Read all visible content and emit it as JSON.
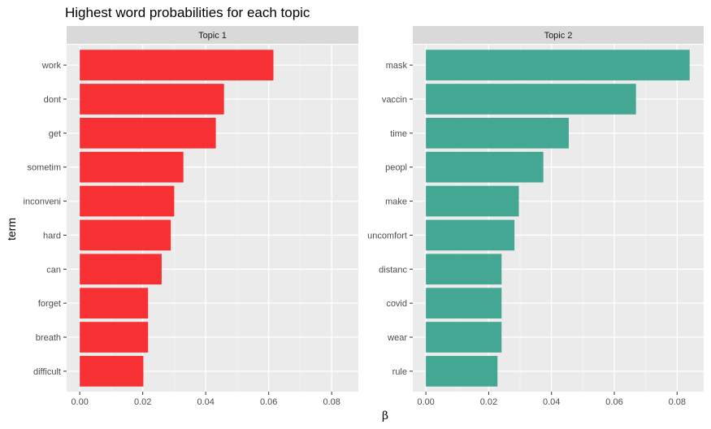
{
  "chart_data": {
    "type": "bar",
    "orientation": "horizontal",
    "title": "Highest word probabilities for each topic",
    "xlabel": "β",
    "ylabel": "term",
    "grid": true,
    "legend": "none",
    "panels": [
      {
        "name": "Topic 1",
        "color": "#f8262a",
        "xlim": [
          0,
          0.088
        ],
        "x_ticks": [
          0.0,
          0.02,
          0.04,
          0.06,
          0.08
        ],
        "x_tick_labels": [
          "0.00",
          "0.02",
          "0.04",
          "0.06",
          "0.08"
        ],
        "categories": [
          "work",
          "dont",
          "get",
          "sometim",
          "inconveni",
          "hard",
          "can",
          "forget",
          "breath",
          "difficult"
        ],
        "values": [
          0.0615,
          0.0458,
          0.0432,
          0.0329,
          0.03,
          0.0289,
          0.026,
          0.0217,
          0.0217,
          0.0202
        ]
      },
      {
        "name": "Topic 2",
        "color": "#3ba38e",
        "xlim": [
          0,
          0.088
        ],
        "x_ticks": [
          0.0,
          0.02,
          0.04,
          0.06,
          0.08
        ],
        "x_tick_labels": [
          "0.00",
          "0.02",
          "0.04",
          "0.06",
          "0.08"
        ],
        "categories": [
          "mask",
          "vaccin",
          "time",
          "peopl",
          "make",
          "uncomfort",
          "distanc",
          "covid",
          "wear",
          "rule"
        ],
        "values": [
          0.084,
          0.0669,
          0.0455,
          0.0374,
          0.0296,
          0.0282,
          0.0241,
          0.0241,
          0.0241,
          0.0228
        ]
      }
    ]
  }
}
